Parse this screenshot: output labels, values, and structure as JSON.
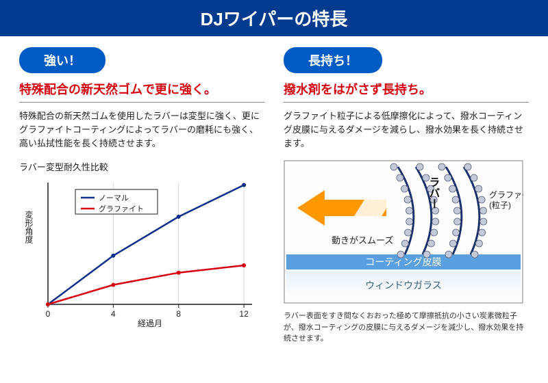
{
  "main_title": "DJワイパーの特長",
  "left": {
    "pill": "強い！",
    "subtitle": "特殊配合の新天然ゴムで更に強く。",
    "body": "特殊配合の新天然ゴムを使用したラバーは変型に強く、更にグラファイトコーティングによってラバーの磨耗にも強く、高い払拭性能を長く持続させます。",
    "chart": {
      "type": "line",
      "title": "ラバー変型耐久性比較",
      "xlabel": "経過月",
      "ylabel": "変形角度",
      "x_ticks": [
        0,
        4,
        8,
        12
      ],
      "xlim": [
        0,
        12.5
      ],
      "ylim": [
        0,
        100
      ],
      "series": [
        {
          "name": "ノーマル",
          "label": "ノーマル",
          "color": "#0b2f8a",
          "width": 2.5,
          "x": [
            0,
            4,
            8,
            12
          ],
          "y": [
            0,
            40,
            72,
            98
          ]
        },
        {
          "name": "グラファイト",
          "label": "グラファイト",
          "color": "#d7000f",
          "width": 2.5,
          "x": [
            0,
            4,
            8,
            12
          ],
          "y": [
            0,
            16,
            26,
            32
          ]
        }
      ],
      "axis_color": "#1b1b1b",
      "grid_color": "#d9d9d9",
      "bg_color": "#ffffff",
      "font_size_label": 12,
      "font_size_tick": 12,
      "legend_box_border": "#1b1b1b"
    }
  },
  "right": {
    "pill": "長持ち！",
    "subtitle": "撥水剤をはがさず長持ち。",
    "body": "グラファイト粒子による低摩擦化によって、撥水コーティング皮膜に与えるダメージを減らし、撥水効果を長く持続させます。",
    "diagram": {
      "type": "infographic",
      "rubber_label": "ラバー",
      "graphite_label": "グラファイト\n(粒子)",
      "smooth_label": "動きがスムーズ",
      "coating_label": "コーティング皮膜",
      "glass_label": "ウィンドウガラス",
      "arrow_color": "#ff9800",
      "rubber_line_color": "#1a2f6b",
      "graphite_particle_color": "#c2c9d9",
      "coating_color": "#5aa0e0",
      "glass_color_top": "#e8f2fb",
      "glass_color_bottom": "#ffffff",
      "border_color": "#808080",
      "bg_color": "#fdfdfd",
      "label_font_size": 14,
      "small_label_font_size": 12
    },
    "caption": "ラバー表面をすき間なくおおった極めて摩擦抵抗の小さい炭素微粒子が、撥水コーティングの皮膜に与えるダメージを減少し、撥水効果を持続させます。"
  }
}
